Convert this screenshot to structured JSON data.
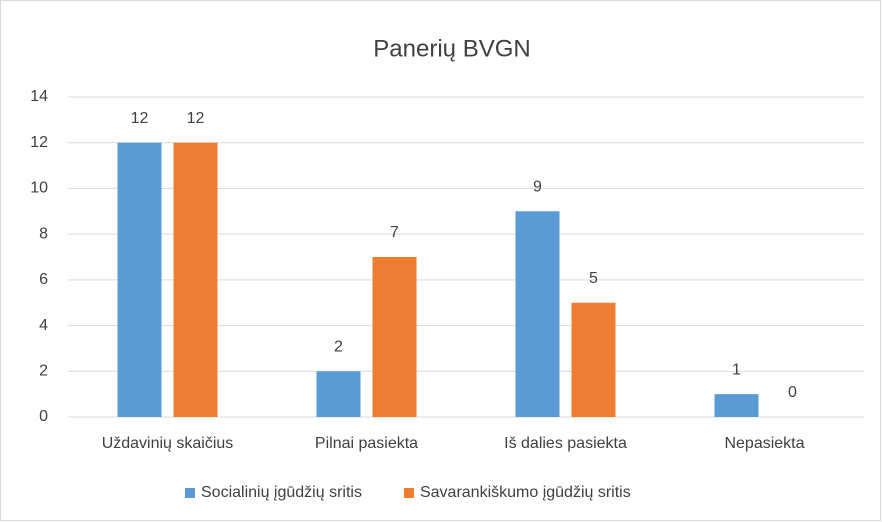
{
  "chart_data": {
    "type": "bar",
    "title": "Panerių BVGN",
    "categories": [
      "Uždavinių skaičius",
      "Pilnai pasiekta",
      "Iš dalies pasiekta",
      "Nepasiekta"
    ],
    "series": [
      {
        "name": "Socialinių įgūdžių sritis",
        "color": "#5b9bd5",
        "values": [
          12,
          2,
          9,
          1
        ]
      },
      {
        "name": "Savarankiškumo įgūdžių sritis",
        "color": "#ed7d31",
        "values": [
          12,
          7,
          5,
          0
        ]
      }
    ],
    "ylim": [
      0,
      14
    ],
    "yticks": [
      0,
      2,
      4,
      6,
      8,
      10,
      12,
      14
    ],
    "grid": true,
    "legend": "bottom"
  }
}
